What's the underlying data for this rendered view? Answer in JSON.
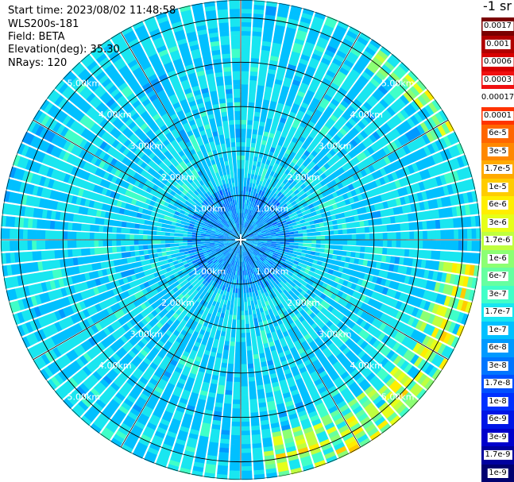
{
  "header": {
    "start_time": "Start time: 2023/08/02 11:48:58",
    "device": "WLS200s-181",
    "field": "Field: BETA",
    "elevation": "Elevation(deg): 35.30",
    "nrays": "NRays: 120"
  },
  "legend": {
    "unit": "-1 sr",
    "ticks": [
      "0.0017",
      "0.001",
      "0.0006",
      "0.0003",
      "0.00017",
      "0.0001",
      "6e-5",
      "3e-5",
      "1.7e-5",
      "1e-5",
      "6e-6",
      "3e-6",
      "1.7e-6",
      "1e-6",
      "6e-7",
      "3e-7",
      "1.7e-7",
      "1e-7",
      "6e-8",
      "3e-8",
      "1.7e-8",
      "1e-8",
      "6e-9",
      "3e-9",
      "1.7e-9",
      "1e-9"
    ],
    "colors": [
      "#7a0000",
      "#b00000",
      "#d80000",
      "#f01010",
      "#ffffff",
      "#ff3300",
      "#ff6600",
      "#ff8800",
      "#ffaa00",
      "#ffcc00",
      "#ffee00",
      "#e6ff19",
      "#bfff3f",
      "#8cff73",
      "#66ffa0",
      "#40ffc8",
      "#19e6f0",
      "#00c0ff",
      "#0099ff",
      "#0075ff",
      "#0050ff",
      "#0030ff",
      "#0015e6",
      "#0000cc",
      "#00009e",
      "#000070"
    ]
  },
  "chart_data": {
    "type": "heatmap",
    "projection": "polar-ppi",
    "field": "BETA",
    "n_rays": 120,
    "range_rings_km": [
      1.0,
      2.0,
      3.0,
      4.0,
      5.0
    ],
    "ring_labels": [
      "1.00km",
      "2.00km",
      "3.00km",
      "4.00km",
      "5.00km"
    ],
    "max_range_km": 5.4,
    "azimuth_spokes_deg": [
      0,
      30,
      60,
      90,
      120,
      150,
      180,
      210,
      240,
      270,
      300,
      330
    ],
    "colorbar_min": "1e-9",
    "colorbar_max": "0.0017",
    "dominant_value_range": [
      "1e-8",
      "1e-7"
    ],
    "high_value_regions": [
      {
        "azimuth_deg": [
          40,
          60
        ],
        "range_km": [
          5.0,
          5.4
        ],
        "approx_value": "1e-6"
      },
      {
        "azimuth_deg": [
          100,
          170
        ],
        "range_km": [
          4.6,
          5.4
        ],
        "approx_value": "6e-6"
      }
    ]
  }
}
